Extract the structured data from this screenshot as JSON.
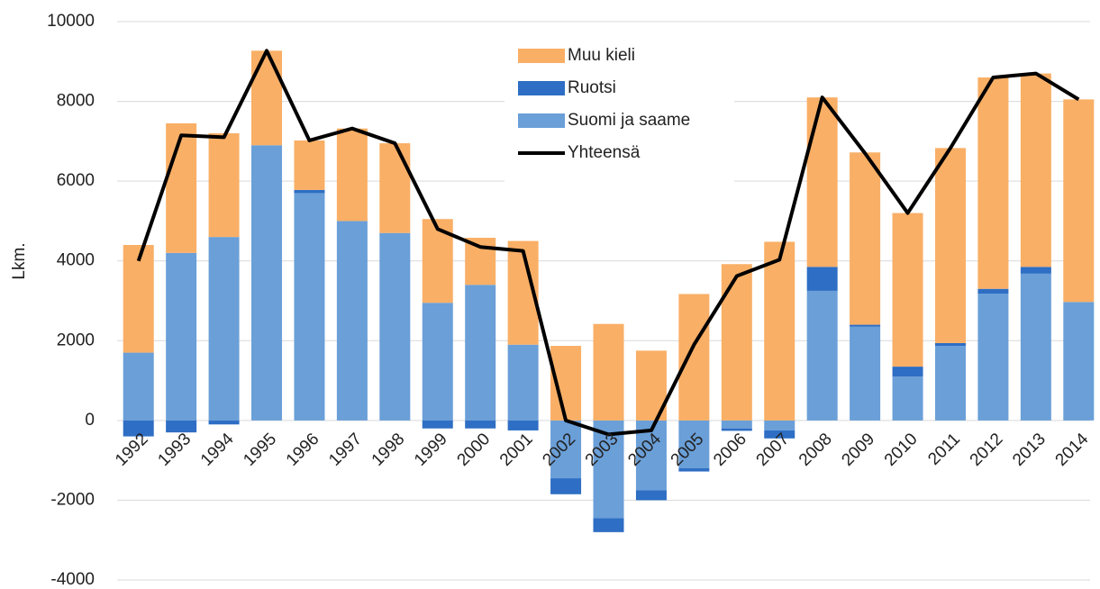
{
  "chart_data": {
    "type": "bar",
    "stacked": true,
    "y_label": "Lkm.",
    "categories": [
      "1992",
      "1993",
      "1994",
      "1995",
      "1996",
      "1997",
      "1998",
      "1999",
      "2000",
      "2001",
      "2002",
      "2003",
      "2004",
      "2005",
      "2006",
      "2007",
      "2008",
      "2009",
      "2010",
      "2011",
      "2012",
      "2013",
      "2014"
    ],
    "series": [
      {
        "name": "Suomi ja saame",
        "type": "bar",
        "color": "#6a9fd8",
        "values": [
          1700,
          4200,
          4600,
          6900,
          5700,
          5000,
          4700,
          2950,
          3400,
          1900,
          -1450,
          -2450,
          -1750,
          -1200,
          -200,
          -250,
          3250,
          2350,
          1100,
          1870,
          3180,
          3680,
          2970
        ]
      },
      {
        "name": "Ruotsi",
        "type": "bar",
        "color": "#2e6ec4",
        "values": [
          -400,
          -300,
          -100,
          0,
          80,
          0,
          0,
          -200,
          -200,
          -250,
          -400,
          -350,
          -250,
          -80,
          -60,
          -200,
          600,
          50,
          250,
          70,
          120,
          170,
          0
        ]
      },
      {
        "name": "Muu kieli",
        "type": "bar",
        "color": "#f9af66",
        "values": [
          2700,
          3250,
          2600,
          2370,
          1240,
          2320,
          2250,
          2100,
          1180,
          2600,
          1870,
          2420,
          1750,
          3170,
          3920,
          4480,
          4250,
          4320,
          3850,
          4890,
          5300,
          4850,
          5080
        ]
      },
      {
        "name": "Yhteensä",
        "type": "line",
        "color": "#000000",
        "values": [
          4000,
          7150,
          7100,
          9270,
          7020,
          7320,
          6950,
          4800,
          4350,
          4250,
          0,
          -350,
          -250,
          1900,
          3620,
          4030,
          8100,
          6700,
          5200,
          6830,
          8600,
          8700,
          8050
        ]
      }
    ],
    "legend_order": [
      2,
      1,
      0,
      3
    ],
    "ylim": [
      -4000,
      10000
    ],
    "yticks": [
      -4000,
      -2000,
      0,
      2000,
      4000,
      6000,
      8000,
      10000
    ],
    "grid": true
  }
}
